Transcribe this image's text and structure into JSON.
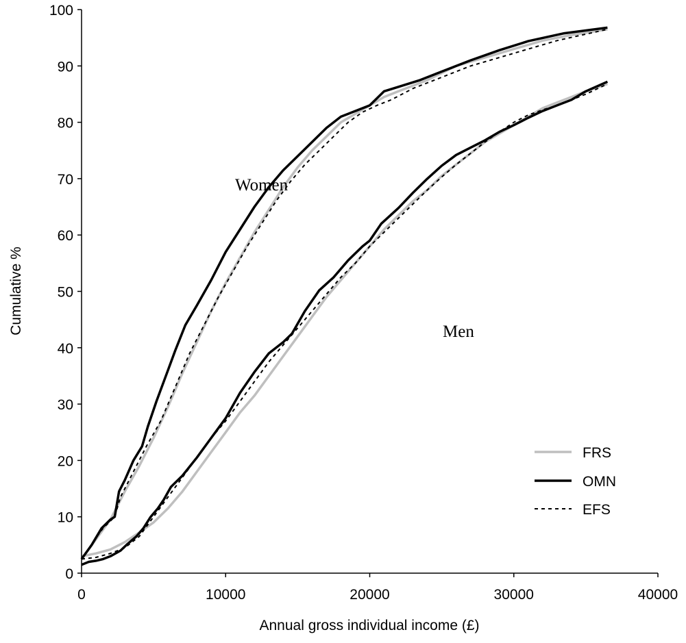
{
  "chart_data": {
    "type": "line",
    "xlabel": "Annual gross individual income (£)",
    "ylabel": "Cumulative %",
    "xlim": [
      0,
      40000
    ],
    "ylim": [
      0,
      100
    ],
    "x_ticks": [
      "0",
      "10000",
      "20000",
      "30000",
      "40000"
    ],
    "y_ticks": [
      "0",
      "10",
      "20",
      "30",
      "40",
      "50",
      "60",
      "70",
      "80",
      "90",
      "100"
    ],
    "grid": false,
    "legend_position": "bottom-right",
    "annotations": [
      {
        "text": "Women",
        "x": 10800,
        "y": 69
      },
      {
        "text": "Men",
        "x": 26500,
        "y": 42.5
      }
    ],
    "legend": [
      {
        "label": "FRS",
        "color": "#bfbfbf",
        "style": "solid"
      },
      {
        "label": "OMN",
        "color": "#000000",
        "style": "solid"
      },
      {
        "label": "EFS",
        "color": "#000000",
        "style": "dashed"
      }
    ],
    "series": [
      {
        "name": "FRS",
        "group": "Women",
        "points": [
          [
            0,
            2.5
          ],
          [
            1000,
            6
          ],
          [
            2000,
            9.5
          ],
          [
            3000,
            14.5
          ],
          [
            4000,
            19
          ],
          [
            5000,
            24
          ],
          [
            6000,
            29.5
          ],
          [
            7000,
            35.5
          ],
          [
            8000,
            41
          ],
          [
            9000,
            46.5
          ],
          [
            10000,
            51.5
          ],
          [
            11000,
            56
          ],
          [
            12000,
            60.5
          ],
          [
            13000,
            64.5
          ],
          [
            14000,
            68.5
          ],
          [
            15000,
            72
          ],
          [
            16000,
            75
          ],
          [
            17000,
            77.5
          ],
          [
            18000,
            80
          ],
          [
            19000,
            81.5
          ],
          [
            20000,
            83
          ],
          [
            21000,
            84.5
          ],
          [
            22000,
            85.5
          ],
          [
            24000,
            87.5
          ],
          [
            26000,
            90
          ],
          [
            28000,
            91.5
          ],
          [
            30000,
            93
          ],
          [
            32000,
            94.5
          ],
          [
            34000,
            95.5
          ],
          [
            36500,
            96.5
          ]
        ]
      },
      {
        "name": "OMN",
        "group": "Women",
        "points": [
          [
            0,
            2.5
          ],
          [
            700,
            5
          ],
          [
            1400,
            8
          ],
          [
            2000,
            9.5
          ],
          [
            2300,
            10
          ],
          [
            2600,
            14.5
          ],
          [
            3000,
            16.5
          ],
          [
            3600,
            20
          ],
          [
            4200,
            22.5
          ],
          [
            4600,
            26
          ],
          [
            5200,
            30.5
          ],
          [
            6000,
            36
          ],
          [
            6500,
            39.5
          ],
          [
            7200,
            44
          ],
          [
            8000,
            47.5
          ],
          [
            9000,
            52
          ],
          [
            10000,
            57
          ],
          [
            11000,
            61
          ],
          [
            12000,
            65
          ],
          [
            13000,
            68.5
          ],
          [
            14000,
            71.5
          ],
          [
            15000,
            74
          ],
          [
            16000,
            76.5
          ],
          [
            17000,
            79
          ],
          [
            18000,
            81
          ],
          [
            19000,
            82
          ],
          [
            20000,
            83
          ],
          [
            21000,
            85.5
          ],
          [
            22000,
            86.3
          ],
          [
            23500,
            87.5
          ],
          [
            25000,
            89
          ],
          [
            27000,
            91
          ],
          [
            29000,
            92.8
          ],
          [
            31000,
            94.4
          ],
          [
            33500,
            95.8
          ],
          [
            36500,
            96.8
          ]
        ]
      },
      {
        "name": "EFS",
        "group": "Women",
        "points": [
          [
            0,
            2.5
          ],
          [
            800,
            5.5
          ],
          [
            1500,
            8
          ],
          [
            2300,
            10
          ],
          [
            2700,
            13.5
          ],
          [
            3200,
            16
          ],
          [
            3800,
            19
          ],
          [
            4500,
            22.5
          ],
          [
            5500,
            27
          ],
          [
            6500,
            33
          ],
          [
            7500,
            39
          ],
          [
            8500,
            44
          ],
          [
            9500,
            49
          ],
          [
            10500,
            53.5
          ],
          [
            11500,
            58
          ],
          [
            12500,
            62
          ],
          [
            13500,
            66
          ],
          [
            14500,
            69.5
          ],
          [
            15500,
            72.5
          ],
          [
            16500,
            75
          ],
          [
            17500,
            77.5
          ],
          [
            18500,
            80
          ],
          [
            19500,
            81.8
          ],
          [
            20500,
            83
          ],
          [
            21500,
            84
          ],
          [
            23000,
            86
          ],
          [
            25000,
            88
          ],
          [
            27000,
            90
          ],
          [
            29000,
            91.5
          ],
          [
            31000,
            93
          ],
          [
            33000,
            94.5
          ],
          [
            36500,
            96.5
          ]
        ]
      },
      {
        "name": "FRS",
        "group": "Men",
        "points": [
          [
            0,
            3
          ],
          [
            1000,
            3.5
          ],
          [
            2000,
            4.2
          ],
          [
            3000,
            5.5
          ],
          [
            4000,
            7.2
          ],
          [
            5000,
            9
          ],
          [
            6000,
            11.5
          ],
          [
            7000,
            14.5
          ],
          [
            8000,
            18
          ],
          [
            9000,
            21.5
          ],
          [
            10000,
            25
          ],
          [
            11000,
            28.5
          ],
          [
            12000,
            31.5
          ],
          [
            13000,
            35
          ],
          [
            14000,
            38.5
          ],
          [
            15000,
            42
          ],
          [
            16000,
            45.5
          ],
          [
            17000,
            49
          ],
          [
            18000,
            52
          ],
          [
            19000,
            55
          ],
          [
            20000,
            58
          ],
          [
            21000,
            61
          ],
          [
            22000,
            63.5
          ],
          [
            23000,
            66
          ],
          [
            24000,
            68
          ],
          [
            25000,
            70.5
          ],
          [
            26000,
            72.5
          ],
          [
            27000,
            74.5
          ],
          [
            28000,
            76.5
          ],
          [
            29000,
            78
          ],
          [
            30000,
            79.5
          ],
          [
            31000,
            81
          ],
          [
            32000,
            82.5
          ],
          [
            33000,
            83.5
          ],
          [
            34000,
            84.5
          ],
          [
            35000,
            85.5
          ],
          [
            36500,
            86.8
          ]
        ]
      },
      {
        "name": "OMN",
        "group": "Men",
        "points": [
          [
            0,
            1.5
          ],
          [
            500,
            2
          ],
          [
            1000,
            2.2
          ],
          [
            1500,
            2.5
          ],
          [
            2000,
            3
          ],
          [
            2700,
            4
          ],
          [
            3200,
            5.2
          ],
          [
            3800,
            6.5
          ],
          [
            4300,
            8
          ],
          [
            4800,
            10
          ],
          [
            5300,
            11.5
          ],
          [
            5700,
            13
          ],
          [
            6200,
            15.3
          ],
          [
            7000,
            17.3
          ],
          [
            8000,
            20.5
          ],
          [
            9000,
            24
          ],
          [
            10000,
            27.5
          ],
          [
            11000,
            32
          ],
          [
            12000,
            35.7
          ],
          [
            13000,
            39
          ],
          [
            14000,
            41
          ],
          [
            14600,
            42.5
          ],
          [
            15500,
            46.5
          ],
          [
            16500,
            50.2
          ],
          [
            17500,
            52.5
          ],
          [
            18500,
            55.5
          ],
          [
            19500,
            58
          ],
          [
            20000,
            59
          ],
          [
            20800,
            62
          ],
          [
            22000,
            64.8
          ],
          [
            23000,
            67.5
          ],
          [
            24000,
            70
          ],
          [
            25000,
            72.3
          ],
          [
            26000,
            74.2
          ],
          [
            27000,
            75.5
          ],
          [
            28000,
            76.8
          ],
          [
            29000,
            78.3
          ],
          [
            30000,
            79.5
          ],
          [
            31000,
            80.8
          ],
          [
            32000,
            82
          ],
          [
            33000,
            83
          ],
          [
            34000,
            84
          ],
          [
            35000,
            85.5
          ],
          [
            36500,
            87.2
          ]
        ]
      },
      {
        "name": "EFS",
        "group": "Men",
        "points": [
          [
            0,
            2.5
          ],
          [
            1000,
            2.8
          ],
          [
            2000,
            3.5
          ],
          [
            3000,
            4.5
          ],
          [
            4000,
            6.5
          ],
          [
            5000,
            10
          ],
          [
            6000,
            13.5
          ],
          [
            7000,
            17
          ],
          [
            8000,
            20.5
          ],
          [
            9000,
            24
          ],
          [
            10000,
            27
          ],
          [
            11000,
            30.5
          ],
          [
            12000,
            34
          ],
          [
            13000,
            37.5
          ],
          [
            14000,
            40.5
          ],
          [
            15000,
            43.5
          ],
          [
            16000,
            46.5
          ],
          [
            17000,
            49.5
          ],
          [
            18000,
            52.5
          ],
          [
            19000,
            55
          ],
          [
            20000,
            58
          ],
          [
            21000,
            60.5
          ],
          [
            22000,
            63
          ],
          [
            23000,
            65.5
          ],
          [
            24000,
            68
          ],
          [
            25000,
            70.3
          ],
          [
            26000,
            72.5
          ],
          [
            27000,
            74.5
          ],
          [
            28000,
            76.5
          ],
          [
            29000,
            78.3
          ],
          [
            30000,
            80
          ],
          [
            31000,
            81.3
          ],
          [
            32000,
            82.2
          ],
          [
            33000,
            83
          ],
          [
            34000,
            84
          ],
          [
            35000,
            85
          ],
          [
            36500,
            86.8
          ]
        ]
      }
    ]
  }
}
